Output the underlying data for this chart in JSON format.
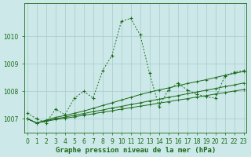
{
  "xlabel": "Graphe pression niveau de la mer (hPa)",
  "x": [
    0,
    1,
    2,
    3,
    4,
    5,
    6,
    7,
    8,
    9,
    10,
    11,
    12,
    13,
    14,
    15,
    16,
    17,
    18,
    19,
    20,
    21,
    22,
    23
  ],
  "line1": [
    1007.2,
    1007.0,
    1006.85,
    1007.35,
    1007.15,
    1007.75,
    1008.0,
    1007.75,
    1008.75,
    1009.3,
    1010.55,
    1010.65,
    1010.05,
    1008.65,
    1007.45,
    1008.05,
    1008.3,
    1008.05,
    1007.9,
    1007.8,
    1007.75,
    1008.55,
    1008.7,
    1008.75
  ],
  "line2": [
    1007.0,
    1006.85,
    1006.95,
    1007.05,
    1007.12,
    1007.2,
    1007.28,
    1007.38,
    1007.48,
    1007.58,
    1007.68,
    1007.78,
    1007.88,
    1007.97,
    1008.05,
    1008.12,
    1008.2,
    1008.28,
    1008.35,
    1008.42,
    1008.5,
    1008.58,
    1008.65,
    1008.72
  ],
  "line3": [
    1007.0,
    1006.85,
    1006.93,
    1007.0,
    1007.06,
    1007.13,
    1007.19,
    1007.26,
    1007.32,
    1007.39,
    1007.45,
    1007.52,
    1007.58,
    1007.65,
    1007.71,
    1007.78,
    1007.84,
    1007.91,
    1007.97,
    1008.04,
    1008.1,
    1008.17,
    1008.23,
    1008.3
  ],
  "line4": [
    1007.0,
    1006.85,
    1006.91,
    1006.97,
    1007.02,
    1007.07,
    1007.13,
    1007.18,
    1007.24,
    1007.29,
    1007.35,
    1007.4,
    1007.46,
    1007.51,
    1007.57,
    1007.62,
    1007.68,
    1007.73,
    1007.79,
    1007.84,
    1007.9,
    1007.95,
    1008.01,
    1008.06
  ],
  "line_color": "#1a6b1a",
  "bg_color": "#cce8e8",
  "grid_color": "#a8cccc",
  "ylim": [
    1006.5,
    1011.2
  ],
  "yticks": [
    1007,
    1008,
    1009,
    1010
  ],
  "xticks": [
    0,
    1,
    2,
    3,
    4,
    5,
    6,
    7,
    8,
    9,
    10,
    11,
    12,
    13,
    14,
    15,
    16,
    17,
    18,
    19,
    20,
    21,
    22,
    23
  ],
  "tick_fontsize": 5.5,
  "xlabel_fontsize": 6.5
}
